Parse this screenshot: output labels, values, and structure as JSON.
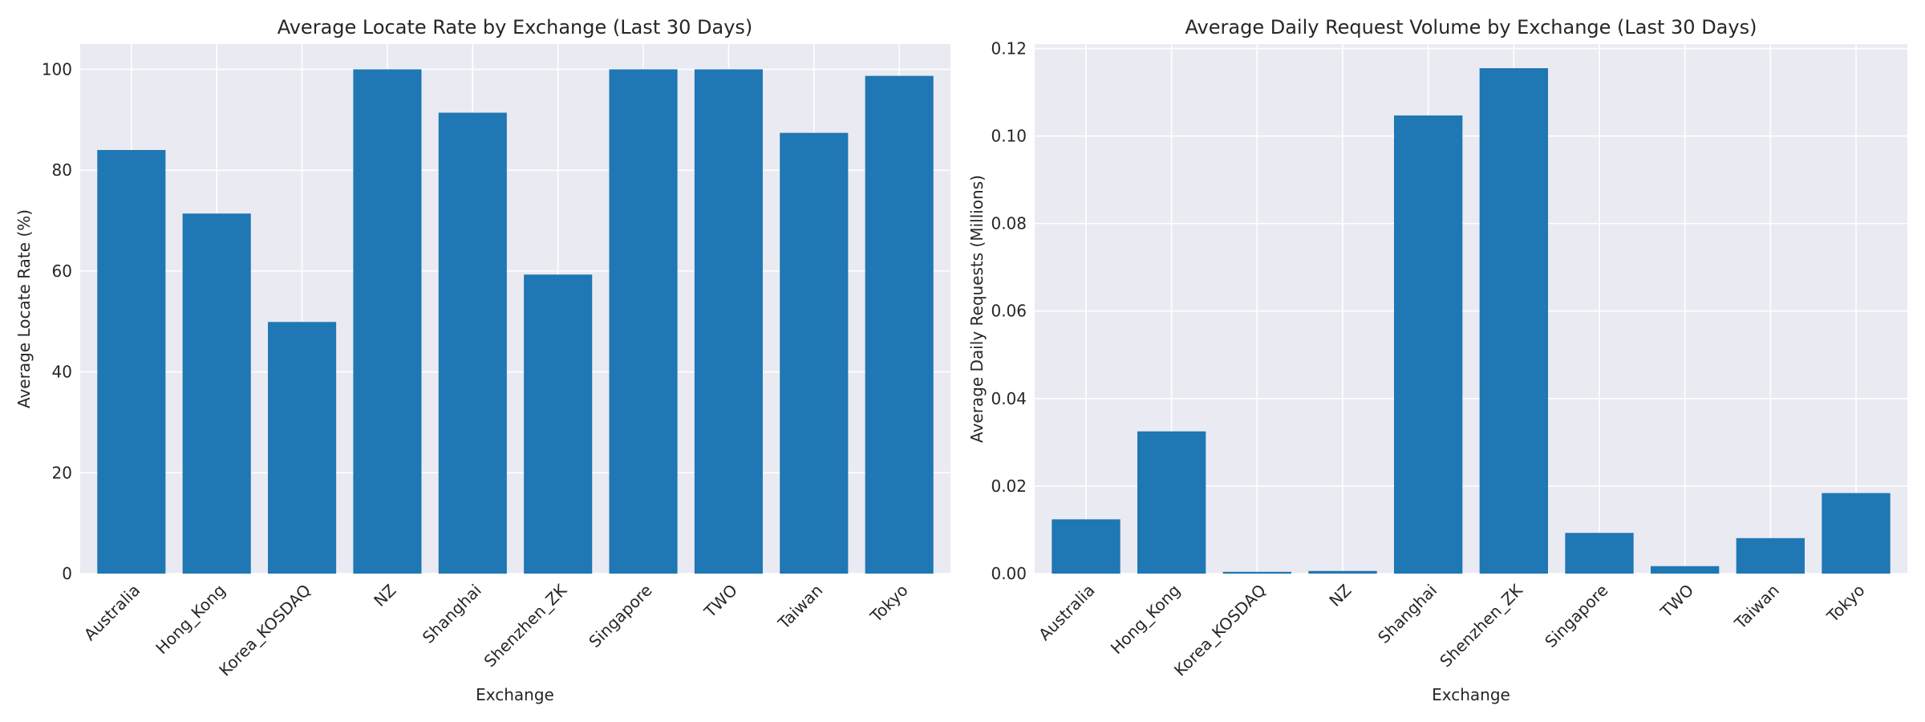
{
  "chart_data": [
    {
      "type": "bar",
      "title": "Average Locate Rate by Exchange (Last 30 Days)",
      "xlabel": "Exchange",
      "ylabel": "Average Locate Rate (%)",
      "categories": [
        "Australia",
        "Hong_Kong",
        "Korea_KOSDAQ",
        "NZ",
        "Shanghai",
        "Shenzhen_ZK",
        "Singapore",
        "TWO",
        "Taiwan",
        "Tokyo"
      ],
      "values": [
        84.0,
        71.4,
        49.9,
        100.0,
        91.4,
        59.3,
        100.0,
        100.0,
        87.4,
        98.7
      ],
      "ylim": [
        0,
        105
      ],
      "yticks": [
        0,
        20,
        40,
        60,
        80,
        100
      ],
      "ytick_labels": [
        "0",
        "20",
        "40",
        "60",
        "80",
        "100"
      ],
      "grid": true,
      "color": "#1f77b4"
    },
    {
      "type": "bar",
      "title": "Average Daily Request Volume by Exchange (Last 30 Days)",
      "xlabel": "Exchange",
      "ylabel": "Average Daily Requests (Millions)",
      "categories": [
        "Australia",
        "Hong_Kong",
        "Korea_KOSDAQ",
        "NZ",
        "Shanghai",
        "Shenzhen_ZK",
        "Singapore",
        "TWO",
        "Taiwan",
        "Tokyo"
      ],
      "values": [
        0.0124,
        0.0325,
        0.0004,
        0.0006,
        0.1047,
        0.1155,
        0.0093,
        0.0017,
        0.0081,
        0.0184
      ],
      "ylim": [
        0,
        0.121
      ],
      "yticks": [
        0,
        0.02,
        0.04,
        0.06,
        0.08,
        0.1,
        0.12
      ],
      "ytick_labels": [
        "0.00",
        "0.02",
        "0.04",
        "0.06",
        "0.08",
        "0.10",
        "0.12"
      ],
      "grid": true,
      "color": "#1f77b4"
    }
  ]
}
